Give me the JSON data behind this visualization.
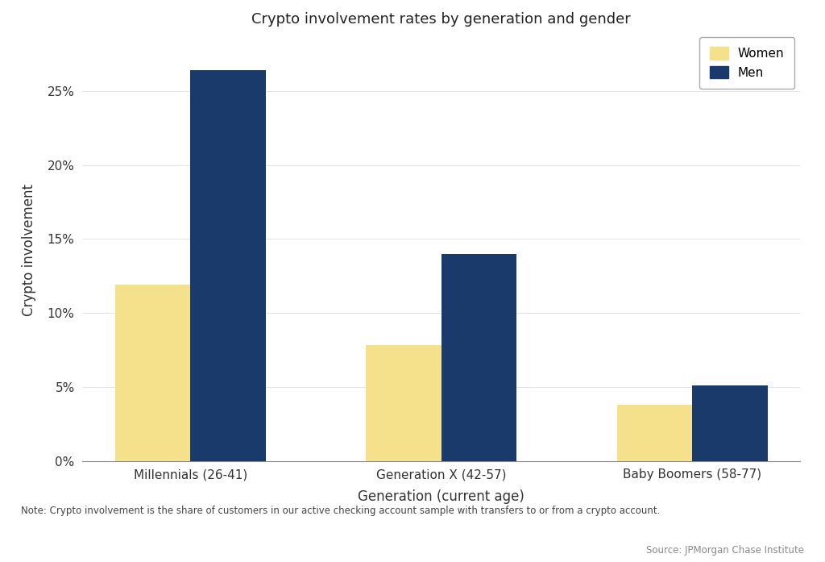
{
  "title": "Crypto involvement rates by generation and gender",
  "categories": [
    "Millennials (26-41)",
    "Generation X (42-57)",
    "Baby Boomers (58-77)"
  ],
  "women_values": [
    0.119,
    0.078,
    0.038
  ],
  "men_values": [
    0.264,
    0.14,
    0.051
  ],
  "women_color": "#F5E08B",
  "men_color": "#1A3A6B",
  "xlabel": "Generation (current age)",
  "ylabel": "Crypto involvement",
  "ylim": [
    0,
    0.285
  ],
  "yticks": [
    0,
    0.05,
    0.1,
    0.15,
    0.2,
    0.25
  ],
  "ytick_labels": [
    "0%",
    "5%",
    "10%",
    "15%",
    "20%",
    "25%"
  ],
  "legend_labels": [
    "Women",
    "Men"
  ],
  "note": "Note: Crypto involvement is the share of customers in our active checking account sample with transfers to or from a crypto account.",
  "source": "Source: JPMorgan Chase Institute",
  "background_color": "#FFFFFF",
  "bar_width": 0.3
}
